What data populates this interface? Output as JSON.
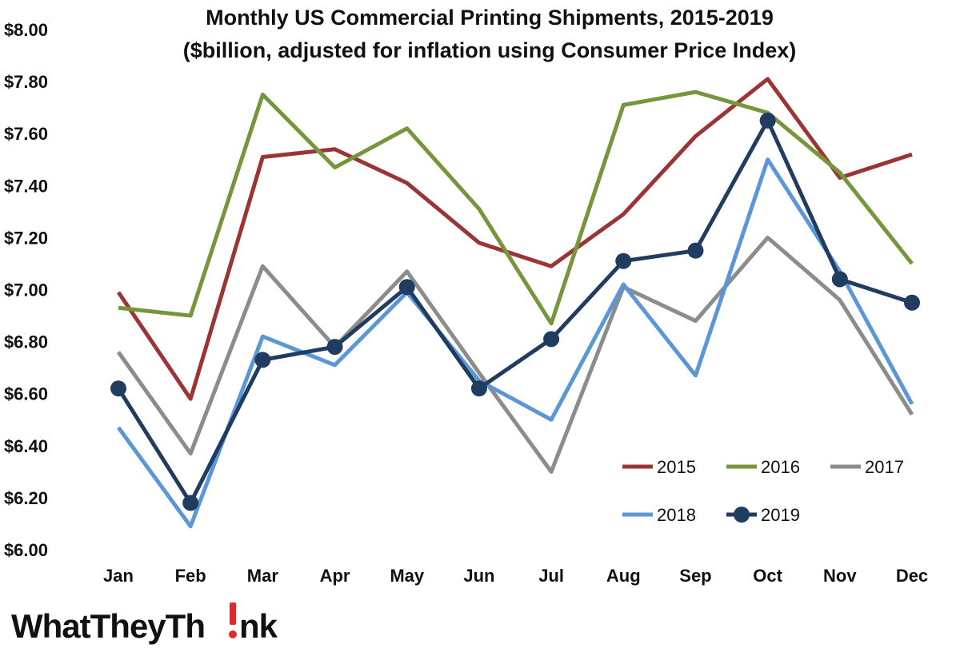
{
  "chart_data": {
    "type": "line",
    "title": "Monthly US Commercial Printing Shipments, 2015-2019",
    "subtitle": "($billion, adjusted for inflation using Consumer Price Index)",
    "categories": [
      "Jan",
      "Feb",
      "Mar",
      "Apr",
      "May",
      "Jun",
      "Jul",
      "Aug",
      "Sep",
      "Oct",
      "Nov",
      "Dec"
    ],
    "ylim": [
      6.0,
      8.0
    ],
    "yticks": [
      6.0,
      6.2,
      6.4,
      6.6,
      6.8,
      7.0,
      7.2,
      7.4,
      7.6,
      7.8,
      8.0
    ],
    "ytick_labels": [
      "$6.00",
      "$6.20",
      "$6.40",
      "$6.60",
      "$6.80",
      "$7.00",
      "$7.20",
      "$7.40",
      "$7.60",
      "$7.80",
      "$8.00"
    ],
    "grid": false,
    "legend_position": "bottom-right",
    "series": [
      {
        "name": "2015",
        "color": "#9b3434",
        "markers": false,
        "values": [
          6.99,
          6.58,
          7.51,
          7.54,
          7.41,
          7.18,
          7.09,
          7.29,
          7.59,
          7.81,
          7.43,
          7.52
        ]
      },
      {
        "name": "2016",
        "color": "#75963a",
        "markers": false,
        "values": [
          6.93,
          6.9,
          7.75,
          7.47,
          7.62,
          7.31,
          6.87,
          7.71,
          7.76,
          7.68,
          7.45,
          7.1
        ]
      },
      {
        "name": "2017",
        "color": "#8c8c8c",
        "markers": false,
        "values": [
          6.76,
          6.37,
          7.09,
          6.78,
          7.07,
          6.68,
          6.3,
          7.01,
          6.88,
          7.2,
          6.96,
          6.52
        ]
      },
      {
        "name": "2018",
        "color": "#5b96d6",
        "markers": false,
        "values": [
          6.47,
          6.09,
          6.82,
          6.71,
          6.99,
          6.65,
          6.5,
          7.02,
          6.67,
          7.5,
          7.07,
          6.56
        ]
      },
      {
        "name": "2019",
        "color": "#203c60",
        "markers": true,
        "values": [
          6.62,
          6.18,
          6.73,
          6.78,
          7.01,
          6.62,
          6.81,
          7.11,
          7.15,
          7.65,
          7.04,
          6.95
        ]
      }
    ]
  },
  "logo": {
    "text_before": "WhatTheyTh",
    "text_after": "nk",
    "accent_color": "#e5262d"
  }
}
